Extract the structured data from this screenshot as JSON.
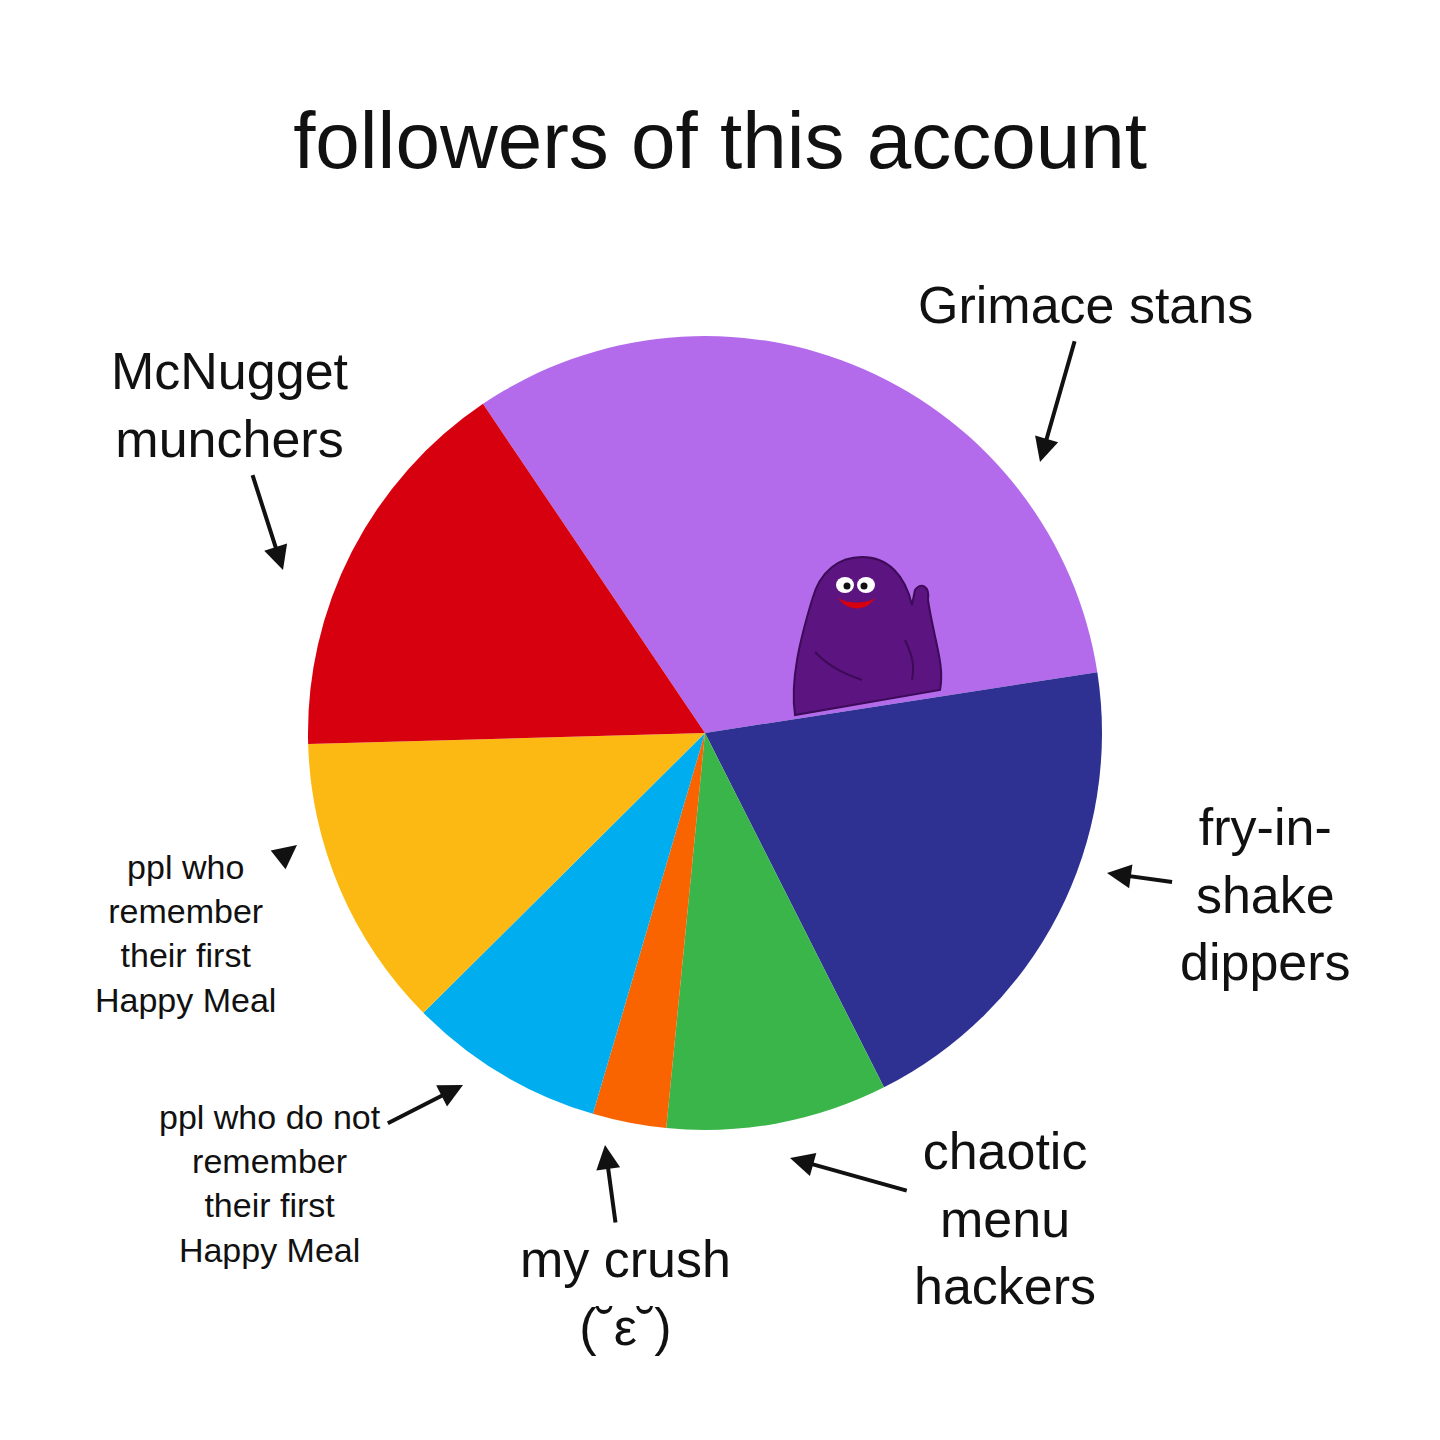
{
  "chart_data": {
    "type": "pie",
    "title": "followers of this account",
    "categories": [
      "Grimace stans",
      "fry-in-\nshake\ndippers",
      "chaotic\nmenu\nhackers",
      "my crush\n(˘ε˘)",
      "ppl who do not\nremember\ntheir first\nHappy Meal",
      "ppl who\nremember\ntheir first\nHappy Meal",
      "McNugget\nmunchers"
    ],
    "values": [
      32,
      20,
      9,
      3,
      8,
      12,
      16
    ],
    "colors": [
      "#b36beb",
      "#2e3192",
      "#3ab54a",
      "#f96300",
      "#00adef",
      "#fdb913",
      "#d7000f"
    ]
  }
}
